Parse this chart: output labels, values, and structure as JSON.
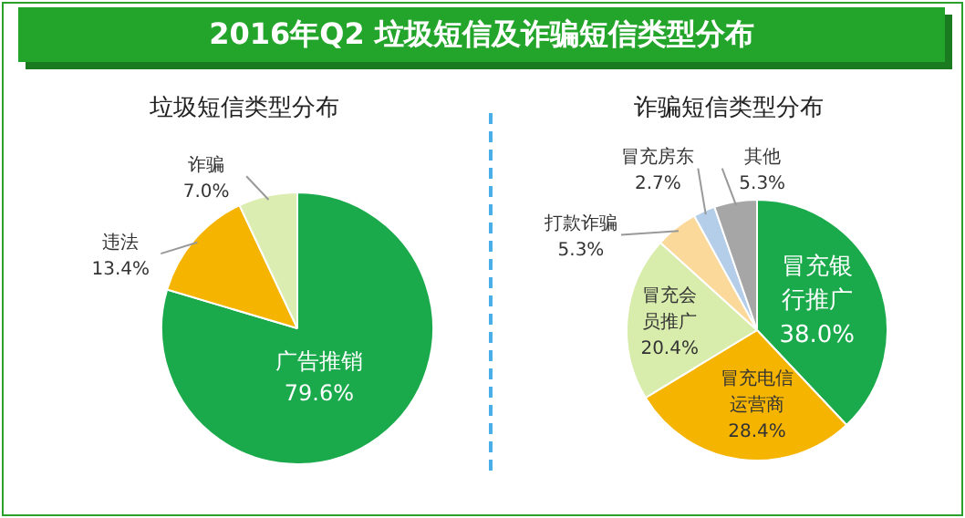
{
  "chart_data": [
    {
      "type": "pie",
      "title": "2016年Q2 垃圾短信及诈骗短信类型分布",
      "subtitle": "垃圾短信类型分布",
      "categories": [
        "广告推销",
        "违法",
        "诈骗"
      ],
      "values": [
        79.6,
        13.4,
        7.0
      ],
      "value_labels": [
        "79.6%",
        "13.4%",
        "7.0%"
      ],
      "colors": [
        "#1aaa4b",
        "#f5b400",
        "#dcedb2"
      ]
    },
    {
      "type": "pie",
      "title": "诈骗短信类型分布",
      "categories": [
        "冒充银行推广",
        "冒充电信运营商",
        "冒充会员推广",
        "打款诈骗",
        "冒充房东",
        "其他"
      ],
      "values": [
        38.0,
        28.4,
        20.4,
        5.3,
        2.7,
        5.3
      ],
      "value_labels": [
        "38.0%",
        "28.4%",
        "20.4%",
        "5.3%",
        "2.7%",
        "5.3%"
      ],
      "colors": [
        "#1aaa4b",
        "#f5b400",
        "#d8ecac",
        "#fbd99a",
        "#b4cde9",
        "#a6a6a6"
      ]
    }
  ]
}
